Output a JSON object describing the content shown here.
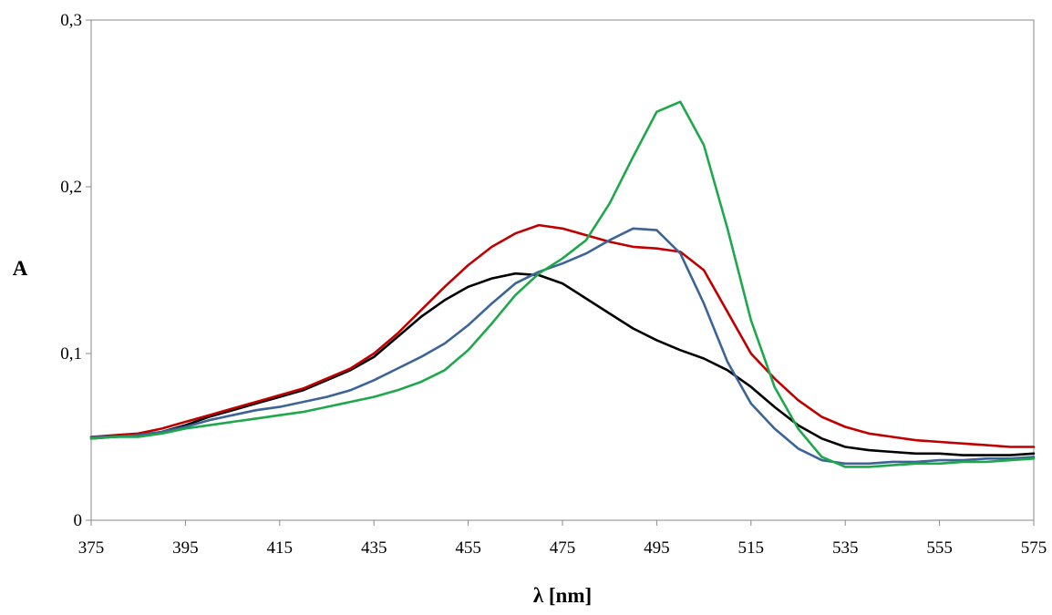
{
  "chart_data": {
    "type": "line",
    "title": "",
    "xlabel": "λ [nm]",
    "ylabel": "A",
    "xlim": [
      375,
      575
    ],
    "ylim": [
      0,
      0.3
    ],
    "x_ticks": [
      375,
      395,
      415,
      435,
      455,
      475,
      495,
      515,
      535,
      555,
      575
    ],
    "x_tick_labels": [
      "375",
      "395",
      "415",
      "435",
      "455",
      "475",
      "495",
      "515",
      "535",
      "555",
      "575"
    ],
    "y_ticks": [
      0,
      0.1,
      0.2,
      0.3
    ],
    "y_tick_labels": [
      "0",
      "0,1",
      "0,2",
      "0,3"
    ],
    "grid": false,
    "legend": "none",
    "series": [
      {
        "color": "#000000",
        "x": [
          375,
          380,
          385,
          390,
          395,
          400,
          405,
          410,
          415,
          420,
          425,
          430,
          435,
          440,
          445,
          450,
          455,
          460,
          465,
          470,
          475,
          480,
          485,
          490,
          495,
          500,
          505,
          510,
          515,
          520,
          525,
          530,
          535,
          540,
          545,
          550,
          555,
          560,
          565,
          570,
          575
        ],
        "y": [
          0.049,
          0.05,
          0.051,
          0.053,
          0.057,
          0.062,
          0.066,
          0.07,
          0.074,
          0.078,
          0.084,
          0.09,
          0.098,
          0.11,
          0.122,
          0.132,
          0.14,
          0.145,
          0.148,
          0.147,
          0.142,
          0.133,
          0.124,
          0.115,
          0.108,
          0.102,
          0.097,
          0.09,
          0.08,
          0.068,
          0.057,
          0.049,
          0.044,
          0.042,
          0.041,
          0.04,
          0.04,
          0.039,
          0.039,
          0.039,
          0.04
        ]
      },
      {
        "color": "#c00000",
        "x": [
          375,
          380,
          385,
          390,
          395,
          400,
          405,
          410,
          415,
          420,
          425,
          430,
          435,
          440,
          445,
          450,
          455,
          460,
          465,
          470,
          475,
          480,
          485,
          490,
          495,
          500,
          505,
          510,
          515,
          520,
          525,
          530,
          535,
          540,
          545,
          550,
          555,
          560,
          565,
          570,
          575
        ],
        "y": [
          0.05,
          0.051,
          0.052,
          0.055,
          0.059,
          0.063,
          0.067,
          0.071,
          0.075,
          0.079,
          0.085,
          0.091,
          0.1,
          0.112,
          0.126,
          0.14,
          0.153,
          0.164,
          0.172,
          0.177,
          0.175,
          0.171,
          0.167,
          0.164,
          0.163,
          0.161,
          0.15,
          0.125,
          0.1,
          0.085,
          0.072,
          0.062,
          0.056,
          0.052,
          0.05,
          0.048,
          0.047,
          0.046,
          0.045,
          0.044,
          0.044
        ]
      },
      {
        "color": "#3c6496",
        "x": [
          375,
          380,
          385,
          390,
          395,
          400,
          405,
          410,
          415,
          420,
          425,
          430,
          435,
          440,
          445,
          450,
          455,
          460,
          465,
          470,
          475,
          480,
          485,
          490,
          495,
          500,
          505,
          510,
          515,
          520,
          525,
          530,
          535,
          540,
          545,
          550,
          555,
          560,
          565,
          570,
          575
        ],
        "y": [
          0.05,
          0.05,
          0.051,
          0.053,
          0.056,
          0.06,
          0.063,
          0.066,
          0.068,
          0.071,
          0.074,
          0.078,
          0.084,
          0.091,
          0.098,
          0.106,
          0.117,
          0.13,
          0.142,
          0.149,
          0.154,
          0.16,
          0.168,
          0.175,
          0.174,
          0.16,
          0.13,
          0.095,
          0.07,
          0.055,
          0.043,
          0.036,
          0.034,
          0.034,
          0.035,
          0.035,
          0.036,
          0.036,
          0.037,
          0.037,
          0.038
        ]
      },
      {
        "color": "#1ea84b",
        "x": [
          375,
          380,
          385,
          390,
          395,
          400,
          405,
          410,
          415,
          420,
          425,
          430,
          435,
          440,
          445,
          450,
          455,
          460,
          465,
          470,
          475,
          480,
          485,
          490,
          495,
          500,
          505,
          510,
          515,
          520,
          525,
          530,
          535,
          540,
          545,
          550,
          555,
          560,
          565,
          570,
          575
        ],
        "y": [
          0.049,
          0.05,
          0.05,
          0.052,
          0.055,
          0.057,
          0.059,
          0.061,
          0.063,
          0.065,
          0.068,
          0.071,
          0.074,
          0.078,
          0.083,
          0.09,
          0.102,
          0.118,
          0.135,
          0.148,
          0.157,
          0.168,
          0.19,
          0.218,
          0.245,
          0.251,
          0.225,
          0.175,
          0.12,
          0.08,
          0.055,
          0.038,
          0.032,
          0.032,
          0.033,
          0.034,
          0.034,
          0.035,
          0.035,
          0.036,
          0.037
        ]
      }
    ]
  }
}
